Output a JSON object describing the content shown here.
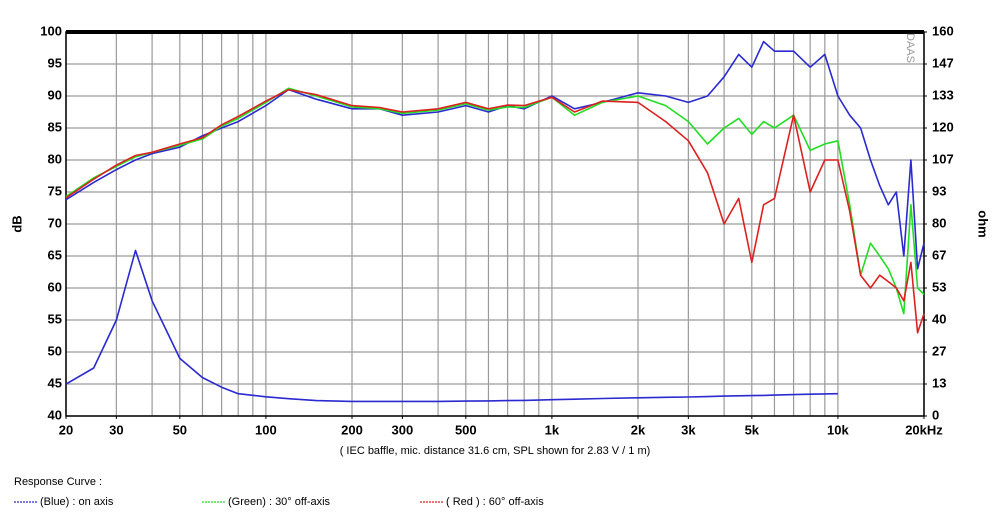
{
  "chart_data": {
    "type": "line",
    "xscale": "log",
    "ylabel": "dB",
    "y2label": "ohm",
    "xlabel": "( IEC baffle, mic. distance 31.6 cm, SPL shown for 2.83 V / 1 m)",
    "watermark": "DAAS",
    "legend_title": "Response Curve :",
    "grid": true,
    "xlim": [
      20,
      20000
    ],
    "ylim": [
      40,
      100
    ],
    "y2lim": [
      0,
      160
    ],
    "xticks": [
      20,
      30,
      50,
      100,
      200,
      300,
      500,
      {
        "value": 1000,
        "label": "1k"
      },
      {
        "value": 2000,
        "label": "2k"
      },
      {
        "value": 3000,
        "label": "3k"
      },
      {
        "value": 5000,
        "label": "5k"
      },
      {
        "value": 10000,
        "label": "10k"
      },
      {
        "value": 20000,
        "label": "20kHz"
      }
    ],
    "xgrid": [
      20,
      30,
      40,
      50,
      60,
      70,
      80,
      90,
      100,
      200,
      300,
      400,
      500,
      600,
      700,
      800,
      900,
      1000,
      2000,
      3000,
      4000,
      5000,
      6000,
      7000,
      8000,
      9000,
      10000,
      20000
    ],
    "yticks": [
      40,
      45,
      50,
      55,
      60,
      65,
      70,
      75,
      80,
      85,
      90,
      95,
      100
    ],
    "y2ticks": [
      0,
      {
        "value": 13.333,
        "label": "13"
      },
      {
        "value": 26.667,
        "label": "27"
      },
      40,
      {
        "value": 53.333,
        "label": "53"
      },
      {
        "value": 66.667,
        "label": "67"
      },
      80,
      {
        "value": 93.333,
        "label": "93"
      },
      {
        "value": 106.667,
        "label": "107"
      },
      120,
      {
        "value": 133.333,
        "label": "133"
      },
      {
        "value": 146.667,
        "label": "147"
      },
      160
    ],
    "x": [
      20,
      25,
      30,
      35,
      40,
      50,
      60,
      70,
      80,
      100,
      120,
      150,
      200,
      250,
      300,
      400,
      500,
      600,
      700,
      800,
      1000,
      1200,
      1500,
      2000,
      2500,
      3000,
      3500,
      4000,
      4500,
      5000,
      5500,
      6000,
      7000,
      8000,
      9000,
      10000,
      11000,
      12000,
      13000,
      14000,
      15000,
      16000,
      17000,
      18000,
      19000,
      20000
    ],
    "series": [
      {
        "name": "(Blue)  : on axis",
        "color": "#2a2ad0",
        "values": [
          73.8,
          76.5,
          78.5,
          80,
          81,
          82,
          83.8,
          85,
          86,
          88.5,
          91,
          89.5,
          88,
          88,
          87,
          87.5,
          88.5,
          87.5,
          88.5,
          88,
          90,
          88,
          89,
          90.5,
          90,
          89,
          90,
          93,
          96.5,
          94.5,
          98.5,
          97,
          97,
          94.5,
          96.5,
          90,
          87,
          85,
          80,
          76,
          73,
          75,
          65,
          80,
          63,
          67
        ]
      },
      {
        "name": "(Green) : 30° off-axis",
        "color": "#22dd22",
        "values": [
          74.3,
          77.2,
          79,
          80.5,
          81.2,
          82.3,
          83.3,
          85.3,
          86.5,
          89,
          91.2,
          90,
          88.3,
          88,
          87.3,
          87.8,
          88.8,
          87.8,
          88.3,
          88.2,
          89.8,
          87,
          89,
          90,
          88.5,
          86,
          82.5,
          85,
          86.5,
          84,
          86,
          85,
          87,
          81.5,
          82.5,
          83,
          73,
          62,
          67,
          65,
          63,
          60,
          56,
          73,
          60,
          59
        ]
      },
      {
        "name": "( Red ) : 60° off-axis",
        "color": "#dd2020",
        "values": [
          74.1,
          77,
          79.2,
          80.7,
          81.2,
          82.5,
          83.5,
          85.5,
          86.8,
          89.2,
          91,
          90.2,
          88.5,
          88.2,
          87.5,
          88,
          89,
          88,
          88.6,
          88.5,
          89.8,
          87.5,
          89.2,
          89,
          86,
          83,
          78,
          70,
          74,
          64,
          73,
          74,
          87,
          75,
          80,
          80,
          72,
          62,
          60,
          62,
          61,
          60,
          58,
          64,
          53,
          56
        ]
      },
      {
        "color": "#2a2ad0",
        "axis": "y2",
        "values": [
          13.3,
          20,
          40,
          69,
          48,
          24,
          16,
          12,
          9.3,
          8,
          7.2,
          6.4,
          6.1,
          6.1,
          6.1,
          6.1,
          6.2,
          6.3,
          6.4,
          6.5,
          6.8,
          7,
          7.3,
          7.6,
          7.8,
          7.9,
          8.1,
          8.3,
          8.4,
          8.5,
          8.6,
          8.7,
          8.9,
          9.1,
          9.2,
          9.3,
          null,
          null,
          null,
          null,
          null,
          null,
          null,
          null,
          null,
          null
        ]
      }
    ]
  }
}
